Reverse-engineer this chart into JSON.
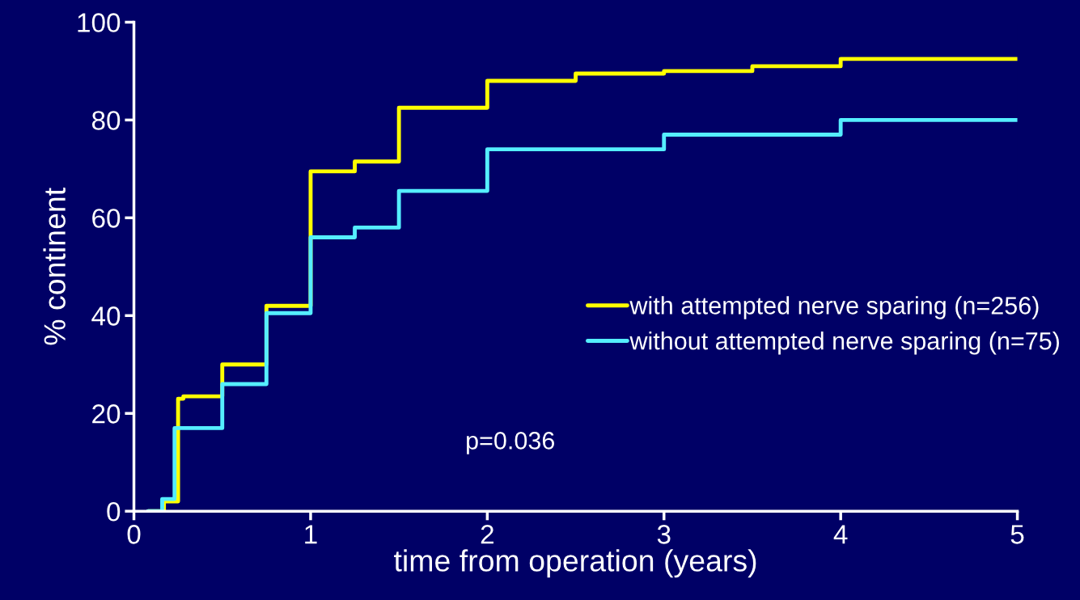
{
  "chart_data": {
    "type": "step",
    "xlabel": "time from operation (years)",
    "ylabel": "% continent",
    "xlim": [
      0,
      5
    ],
    "xticks": [
      0,
      1,
      2,
      3,
      4,
      5
    ],
    "ylim": [
      0,
      100
    ],
    "yticks": [
      0,
      20,
      40,
      60,
      80,
      100
    ],
    "grid": false,
    "legend": "right",
    "line_style": "solid",
    "marker": "none",
    "series": [
      {
        "name": "with attempted nerve sparing (n=256)",
        "color": "#ffff00",
        "x": [
          0.08,
          0.17,
          0.25,
          0.28,
          0.5,
          0.75,
          1.0,
          1.25,
          1.5,
          2.0,
          2.5,
          3.0,
          3.5,
          4.0,
          5.0
        ],
        "values": [
          0,
          2,
          23,
          23.5,
          30,
          42,
          69.5,
          71.5,
          82.5,
          88,
          89.5,
          90,
          91,
          92.5,
          92.5
        ]
      },
      {
        "name": "without attempted nerve sparing (n=75)",
        "color": "#55eeff",
        "x": [
          0.08,
          0.16,
          0.23,
          0.5,
          0.75,
          1.0,
          1.25,
          1.5,
          2.0,
          3.0,
          4.0,
          5.0
        ],
        "values": [
          0,
          2.5,
          17,
          26,
          40.5,
          56,
          58,
          65.5,
          74,
          77,
          80,
          80
        ]
      }
    ],
    "annotations": [
      "p=0.036"
    ]
  }
}
